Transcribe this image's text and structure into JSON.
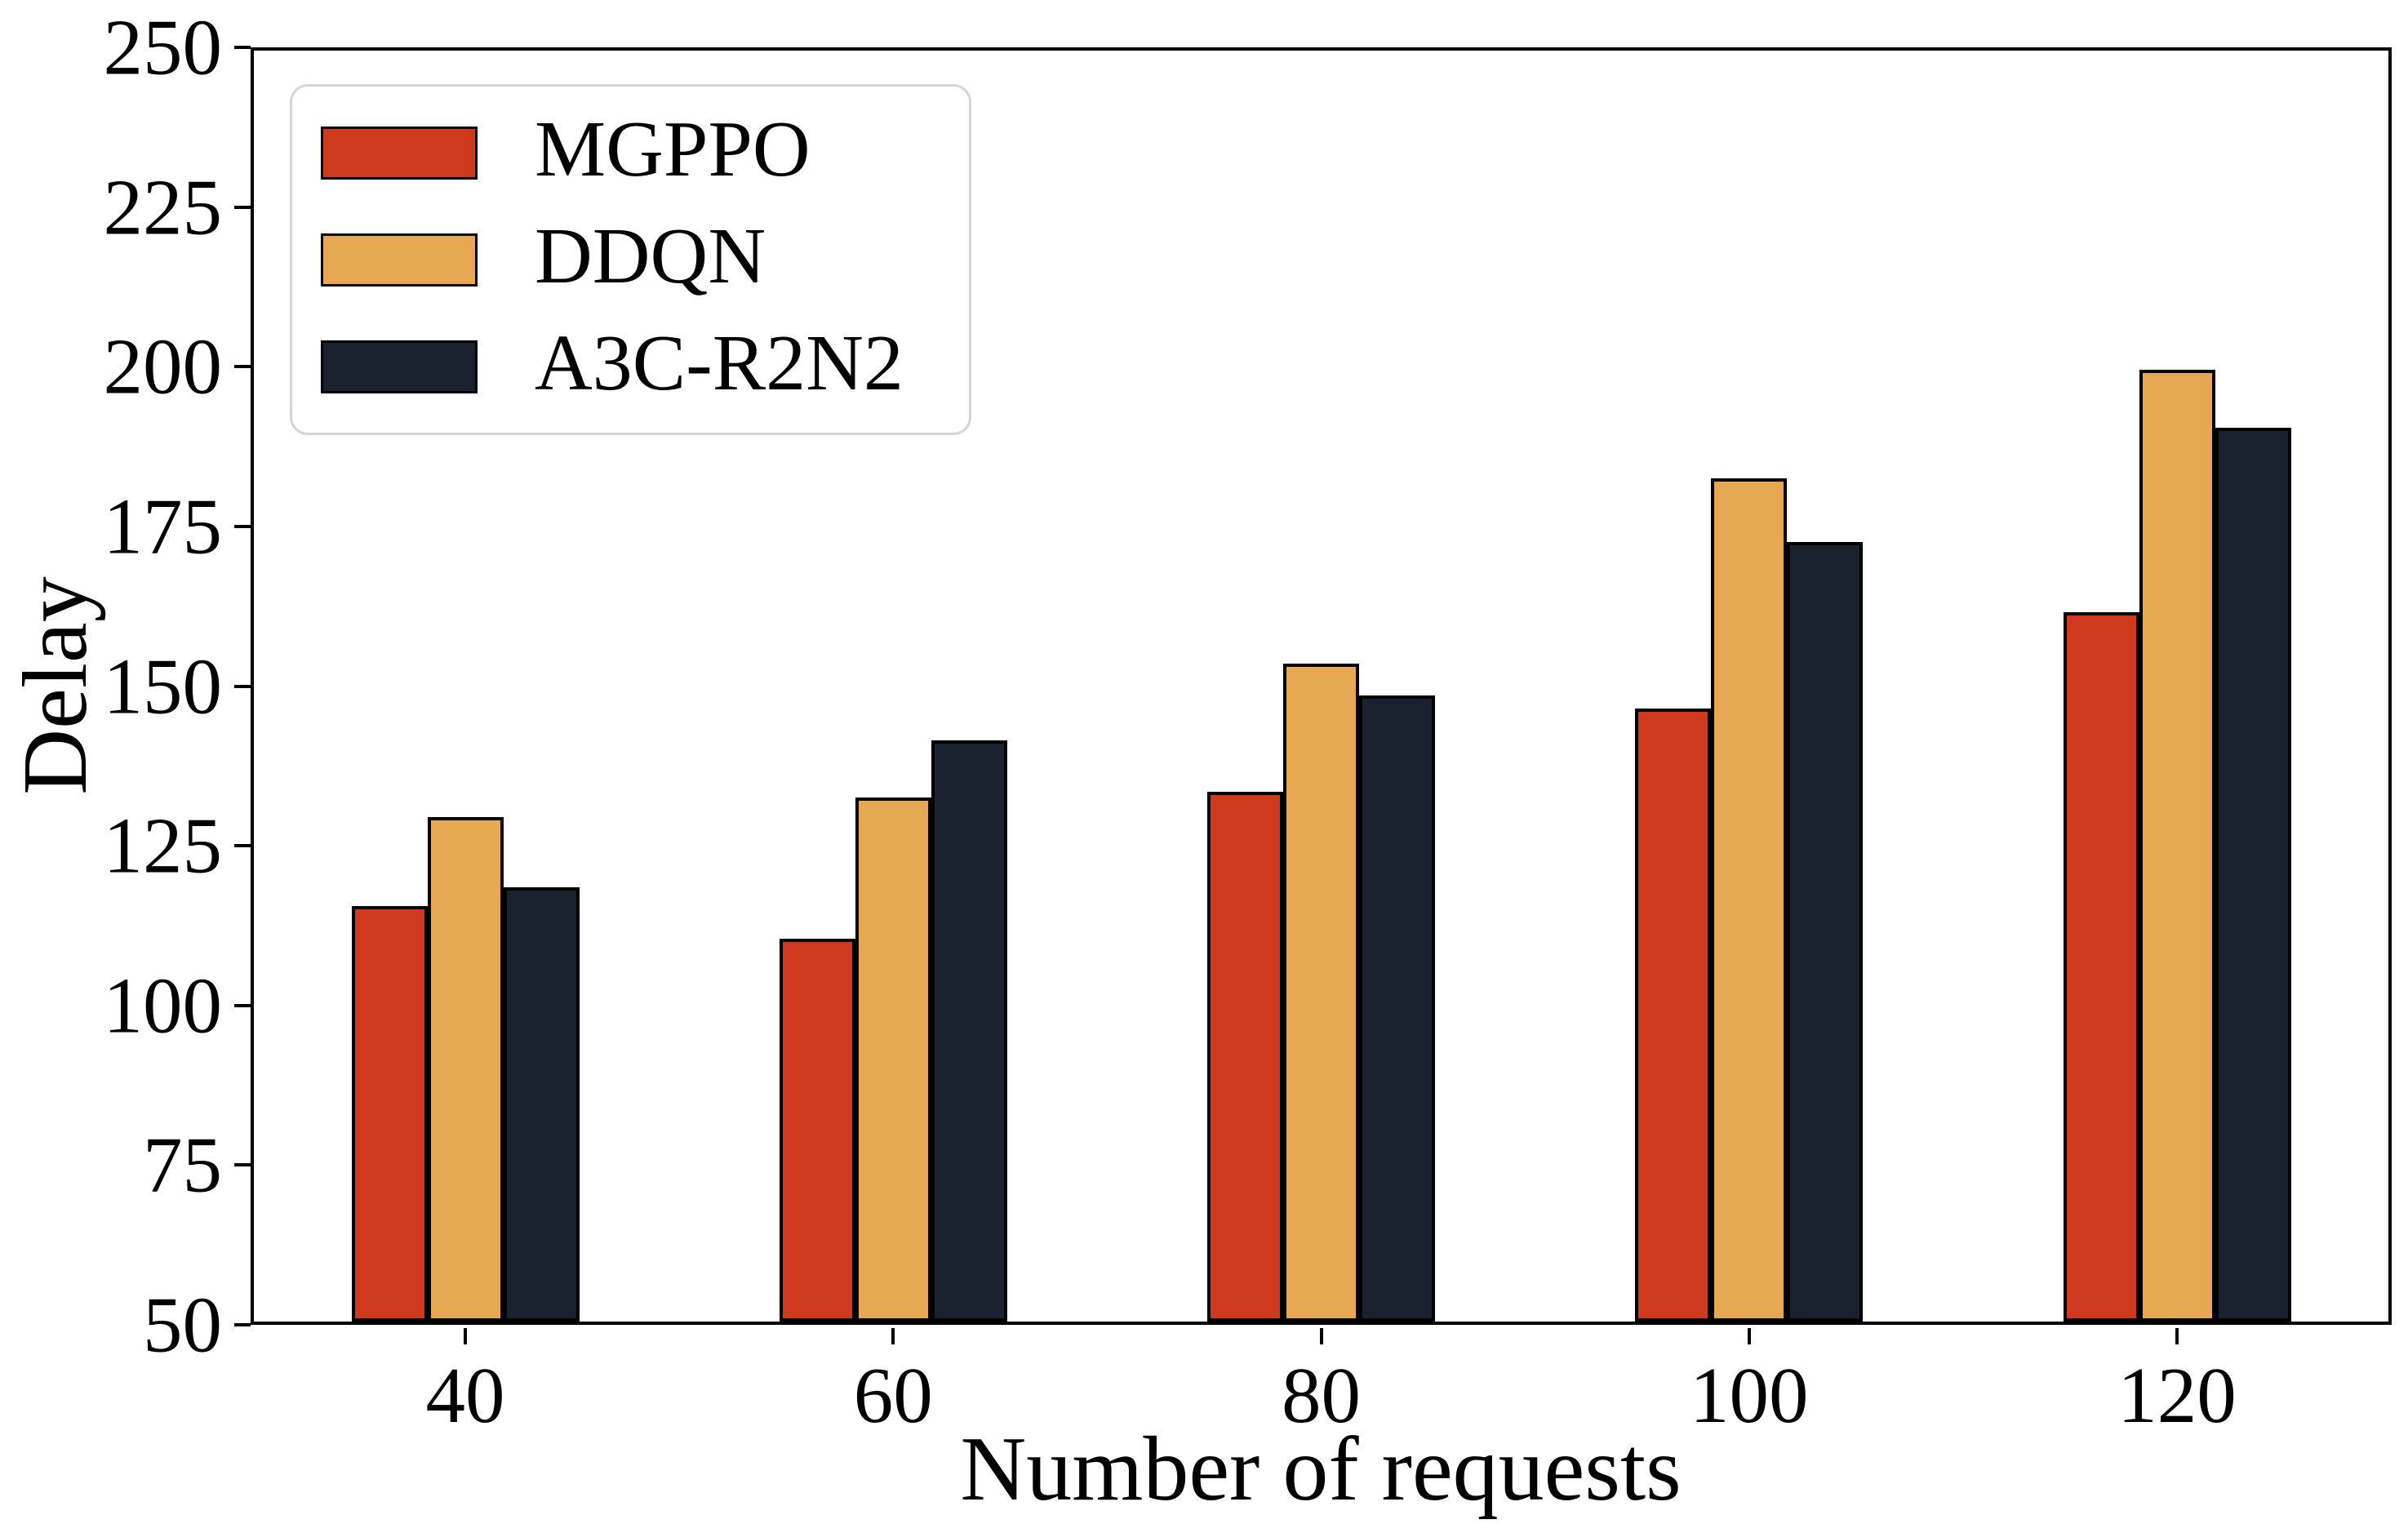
{
  "chart_data": {
    "type": "bar",
    "title": "",
    "xlabel": "Number of requests",
    "ylabel": "Delay",
    "categories": [
      "40",
      "60",
      "80",
      "100",
      "120"
    ],
    "series": [
      {
        "name": "MGPPO",
        "color": "#cf3a1e",
        "values": [
          115,
          110,
          133,
          146,
          161
        ]
      },
      {
        "name": "DDQN",
        "color": "#e6a853",
        "values": [
          129,
          132,
          153,
          182,
          199
        ]
      },
      {
        "name": "A3C-R2N2",
        "color": "#1a2230",
        "values": [
          118,
          141,
          148,
          172,
          190
        ]
      }
    ],
    "bar_edge_color": "#000000",
    "ylim": [
      50,
      250
    ],
    "yticks": [
      50,
      75,
      100,
      125,
      150,
      175,
      200,
      225,
      250
    ],
    "grid": false,
    "legend_position": "upper-left",
    "legend_border_color": "#d4d4d4",
    "background_color": "#ffffff"
  }
}
